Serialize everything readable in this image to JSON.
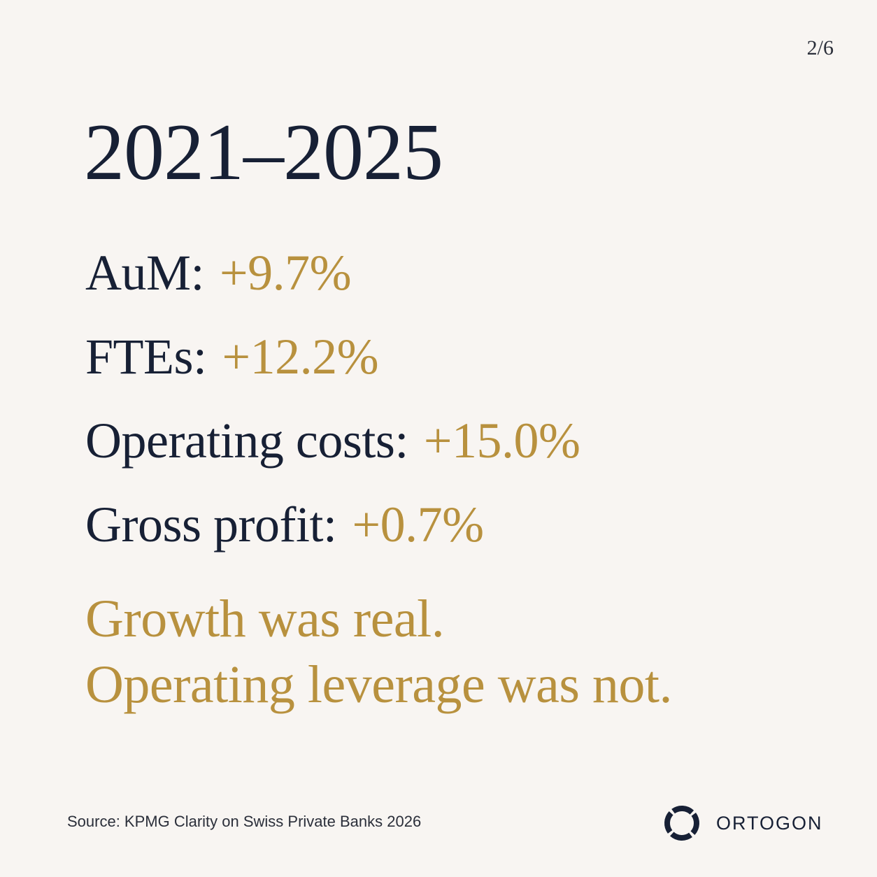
{
  "page_indicator": "2/6",
  "period": "2021–2025",
  "metrics": [
    {
      "label": "AuM:",
      "value": "+9.7%"
    },
    {
      "label": "FTEs:",
      "value": "+12.2%"
    },
    {
      "label": "Operating costs:",
      "value": "+15.0%"
    },
    {
      "label": "Gross profit:",
      "value": "+0.7%"
    }
  ],
  "conclusion": {
    "line1": "Growth was real.",
    "line2": "Operating leverage was not."
  },
  "source": "Source: KPMG Clarity on Swiss Private Banks 2026",
  "brand": {
    "name": "ORTOGON",
    "logo_icon": "ring-logo-icon"
  },
  "colors": {
    "background": "#f8f5f2",
    "navy": "#172035",
    "gold": "#b8913e"
  }
}
